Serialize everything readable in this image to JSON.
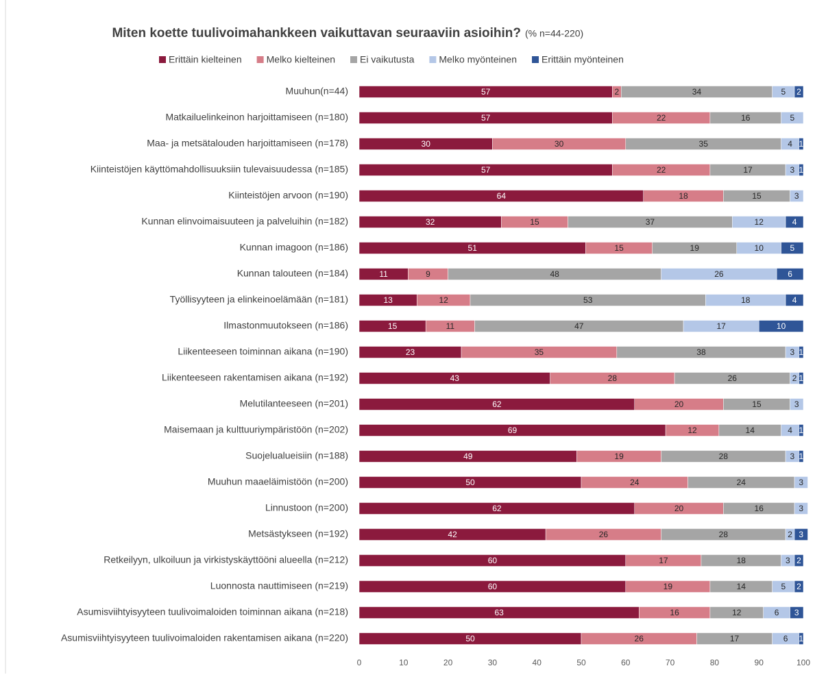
{
  "chart_data": {
    "type": "stacked_barh",
    "title": "Miten koette tuulivoimahankkeen vaikuttavan seuraaviin asioihin?",
    "subtitle": "(% n=44-220)",
    "categories": [
      "Muuhun(n=44)",
      "Matkailuelinkeinon harjoittamiseen (n=180)",
      "Maa- ja metsätalouden harjoittamiseen (n=178)",
      "Kiinteistöjen käyttömahdollisuuksiin tulevaisuudessa (n=185)",
      "Kiinteistöjen arvoon (n=190)",
      "Kunnan elinvoimaisuuteen ja palveluihin (n=182)",
      "Kunnan imagoon (n=186)",
      "Kunnan talouteen (n=184)",
      "Työllisyyteen ja elinkeinoelämään (n=181)",
      "Ilmastonmuutokseen (n=186)",
      "Liikenteeseen toiminnan aikana (n=190)",
      "Liikenteeseen rakentamisen aikana (n=192)",
      "Melutilanteeseen (n=201)",
      "Maisemaan ja kulttuuriympäristöön (n=202)",
      "Suojelualueisiin (n=188)",
      "Muuhun maaeläimistöön (n=200)",
      "Linnustoon (n=200)",
      "Metsästykseen (n=192)",
      "Retkeilyyn, ulkoiluun ja virkistyskäyttööni alueella (n=212)",
      "Luonnosta nauttimiseen (n=219)",
      "Asumisviihtyisyyteen tuulivoimaloiden toiminnan aikana (n=218)",
      "Asumisviihtyisyyteen tuulivoimaloiden rakentamisen aikana (n=220)"
    ],
    "series": [
      {
        "name": "Erittäin kielteinen",
        "color": "#8b1a3d",
        "values": [
          57,
          57,
          30,
          57,
          64,
          32,
          51,
          11,
          13,
          15,
          23,
          43,
          62,
          69,
          49,
          50,
          62,
          42,
          60,
          60,
          63,
          50
        ]
      },
      {
        "name": "Melko kielteinen",
        "color": "#d67d88",
        "values": [
          2,
          22,
          30,
          22,
          18,
          15,
          15,
          9,
          12,
          11,
          35,
          28,
          20,
          12,
          19,
          24,
          20,
          26,
          17,
          19,
          16,
          26
        ]
      },
      {
        "name": "Ei vaikutusta",
        "color": "#a5a5a5",
        "values": [
          34,
          16,
          35,
          17,
          15,
          37,
          19,
          48,
          53,
          47,
          38,
          26,
          15,
          14,
          28,
          24,
          16,
          28,
          18,
          14,
          12,
          17
        ]
      },
      {
        "name": "Melko myönteinen",
        "color": "#b4c7e7",
        "values": [
          5,
          5,
          4,
          3,
          3,
          12,
          10,
          26,
          18,
          17,
          3,
          2,
          3,
          4,
          3,
          3,
          3,
          2,
          3,
          5,
          6,
          6
        ]
      },
      {
        "name": "Erittäin myönteinen",
        "color": "#2f5597",
        "values": [
          2,
          0,
          1,
          1,
          0,
          4,
          5,
          6,
          4,
          10,
          1,
          1,
          0,
          1,
          1,
          0,
          0,
          3,
          2,
          2,
          3,
          1
        ]
      }
    ],
    "xlim": [
      0,
      100
    ],
    "xticks": [
      0,
      10,
      20,
      30,
      40,
      50,
      60,
      70,
      80,
      90,
      100
    ]
  }
}
